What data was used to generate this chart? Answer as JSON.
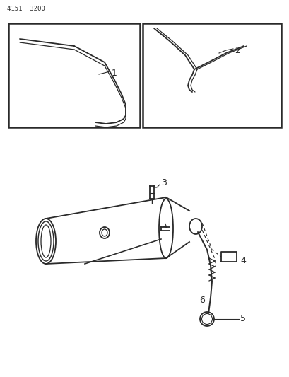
{
  "title_code": "4151  3200",
  "bg_color": "#ffffff",
  "line_color": "#2a2a2a",
  "figsize": [
    4.1,
    5.33
  ],
  "dpi": 100,
  "label1": "1",
  "label2": "2",
  "label3": "3",
  "label4": "4",
  "label5": "5",
  "label6": "6"
}
